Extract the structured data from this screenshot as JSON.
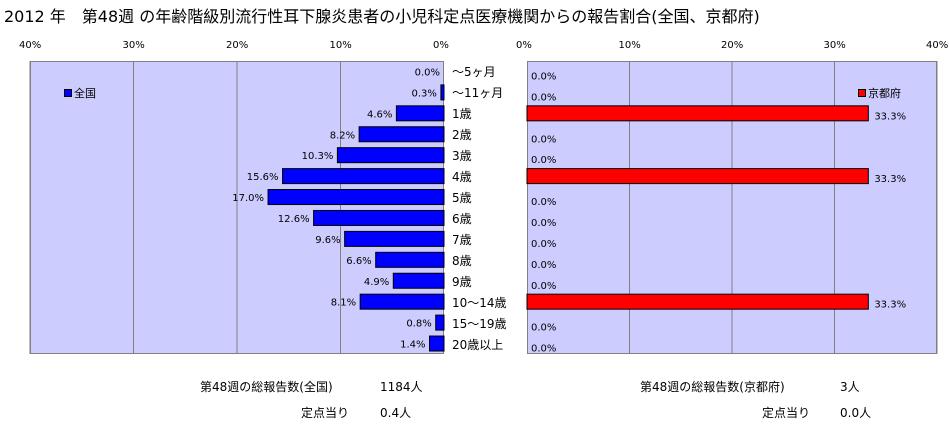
{
  "title": "2012 年　第48週 の年齢階級別流行性耳下腺炎患者の小児科定点医療機関からの報告割合(全国、京都府)",
  "chart_data": [
    {
      "type": "bar",
      "orientation": "horizontal",
      "direction": "right-to-left",
      "categories": [
        "～5ヶ月",
        "～11ヶ月",
        "1歳",
        "2歳",
        "3歳",
        "4歳",
        "5歳",
        "6歳",
        "7歳",
        "8歳",
        "9歳",
        "10～14歳",
        "15～19歳",
        "20歳以上"
      ],
      "series": [
        {
          "name": "全国",
          "values": [
            0.0,
            0.3,
            4.6,
            8.2,
            10.3,
            15.6,
            17.0,
            12.6,
            9.6,
            6.6,
            4.9,
            8.1,
            0.8,
            1.4
          ],
          "value_labels": [
            "0.0%",
            "0.3%",
            "4.6%",
            "8.2%",
            "10.3%",
            "15.6%",
            "17.0%",
            "12.6%",
            "9.6%",
            "6.6%",
            "4.9%",
            "8.1%",
            "0.8%",
            "1.4%"
          ],
          "color": "#0000ff"
        }
      ],
      "xlim": [
        0,
        40
      ],
      "x_ticks": [
        "40%",
        "30%",
        "20%",
        "10%",
        "0%"
      ],
      "grid": true,
      "legend": "top-left",
      "background": "#ccccff"
    },
    {
      "type": "bar",
      "orientation": "horizontal",
      "direction": "left-to-right",
      "categories": [
        "～5ヶ月",
        "～11ヶ月",
        "1歳",
        "2歳",
        "3歳",
        "4歳",
        "5歳",
        "6歳",
        "7歳",
        "8歳",
        "9歳",
        "10～14歳",
        "15～19歳",
        "20歳以上"
      ],
      "series": [
        {
          "name": "京都府",
          "values": [
            0.0,
            0.0,
            33.3,
            0.0,
            0.0,
            33.3,
            0.0,
            0.0,
            0.0,
            0.0,
            0.0,
            33.3,
            0.0,
            0.0
          ],
          "value_labels": [
            "0.0%",
            "0.0%",
            "33.3%",
            "0.0%",
            "0.0%",
            "33.3%",
            "0.0%",
            "0.0%",
            "0.0%",
            "0.0%",
            "0.0%",
            "33.3%",
            "0.0%",
            "0.0%"
          ],
          "color": "#ff0000"
        }
      ],
      "xlim": [
        0,
        40
      ],
      "x_ticks": [
        "0%",
        "10%",
        "20%",
        "30%",
        "40%"
      ],
      "grid": true,
      "legend": "top-right",
      "background": "#ccccff"
    }
  ],
  "footer": {
    "national_total_label": "第48週の総報告数(全国)",
    "national_total_value": "1184人",
    "national_per_label": "定点当り",
    "national_per_value": "0.4人",
    "kyoto_total_label": "第48週の総報告数(京都府)",
    "kyoto_total_value": "3人",
    "kyoto_per_label": "定点当り",
    "kyoto_per_value": "0.0人"
  }
}
